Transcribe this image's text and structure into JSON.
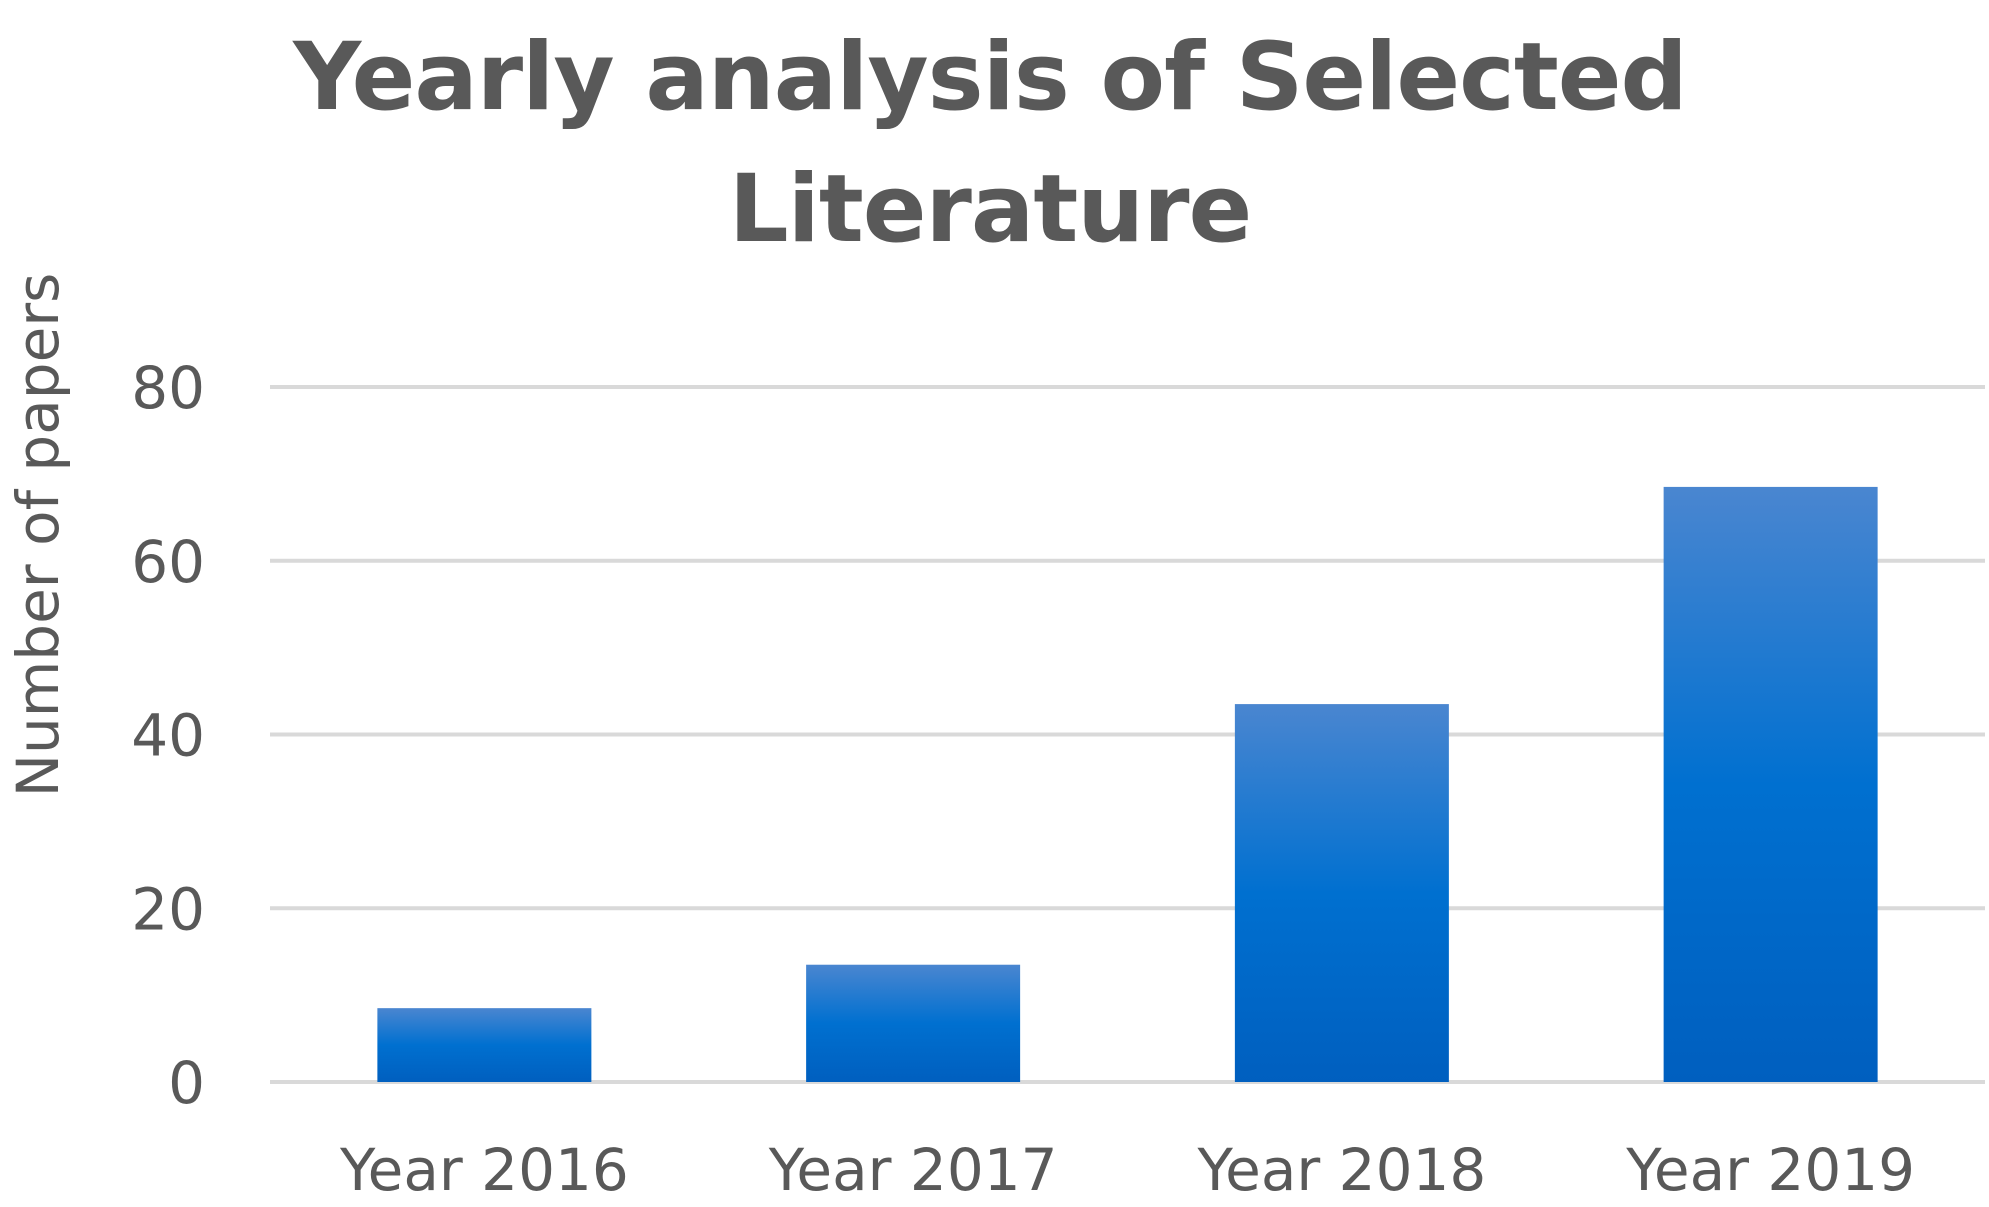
{
  "chart_data": {
    "type": "bar",
    "title": "Yearly analysis of Selected Literature",
    "xlabel": "",
    "ylabel": "Number of  papers",
    "categories": [
      "Year 2016",
      "Year 2017",
      "Year 2018",
      "Year 2019"
    ],
    "values": [
      8.5,
      13.5,
      43.5,
      68.5
    ],
    "ylim": [
      0,
      80
    ],
    "yticks": [
      0,
      20,
      40,
      60,
      80
    ],
    "grid": true,
    "legend": "none",
    "colors": {
      "bar_top": "#4a86d0",
      "bar_bottom": "#005fbf",
      "grid": "#d9d9d9",
      "text": "#595959"
    }
  }
}
